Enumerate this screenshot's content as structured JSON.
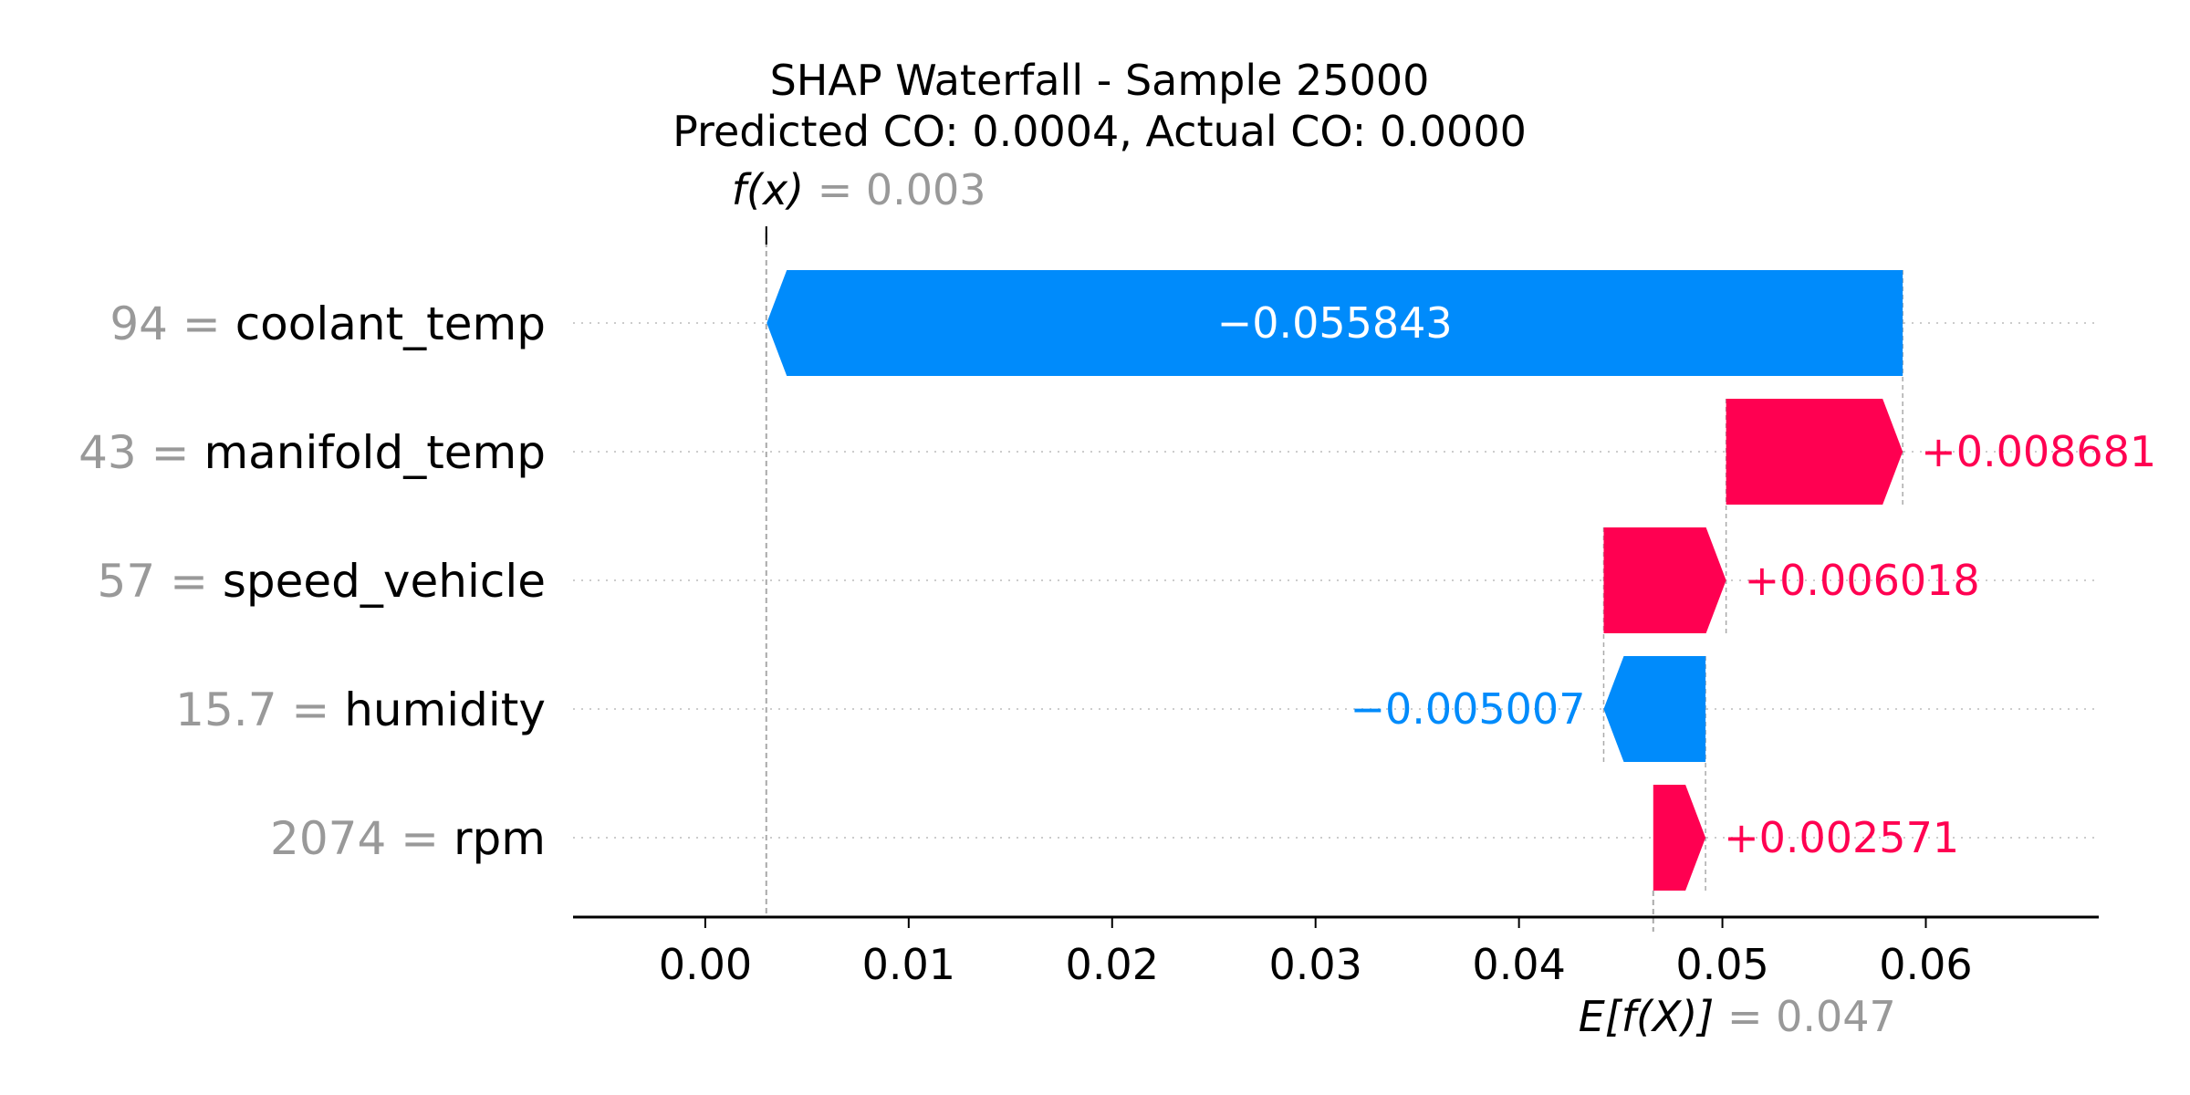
{
  "chart_data": {
    "type": "bar",
    "title_line1": "SHAP Waterfall - Sample 25000",
    "title_line2": "Predicted CO: 0.0004, Actual CO: 0.0000",
    "fx_symbol": "f(x)",
    "fx_value_label": "= 0.003",
    "fx": 0.003,
    "base_symbol": "E[f(X)]",
    "base_value_label": "= 0.047",
    "base_value": 0.0466,
    "xlim": [
      -0.0065,
      0.0685
    ],
    "xticks": [
      0.0,
      0.01,
      0.02,
      0.03,
      0.04,
      0.05,
      0.06
    ],
    "xtick_labels": [
      "0.00",
      "0.01",
      "0.02",
      "0.03",
      "0.04",
      "0.05",
      "0.06"
    ],
    "features": [
      {
        "value": "94",
        "name": "coolant_temp",
        "shap": -0.055843,
        "label": "−0.055843"
      },
      {
        "value": "43",
        "name": "manifold_temp",
        "shap": 0.008681,
        "label": "+0.008681"
      },
      {
        "value": "57",
        "name": "speed_vehicle",
        "shap": 0.006018,
        "label": "+0.006018"
      },
      {
        "value": "15.7",
        "name": "humidity",
        "shap": -0.005007,
        "label": "−0.005007"
      },
      {
        "value": "2074",
        "name": "rpm",
        "shap": 0.002571,
        "label": "+0.002571"
      }
    ],
    "colors": {
      "positive": "#ff0051",
      "negative": "#008bfb",
      "value_gray": "#999999"
    }
  }
}
